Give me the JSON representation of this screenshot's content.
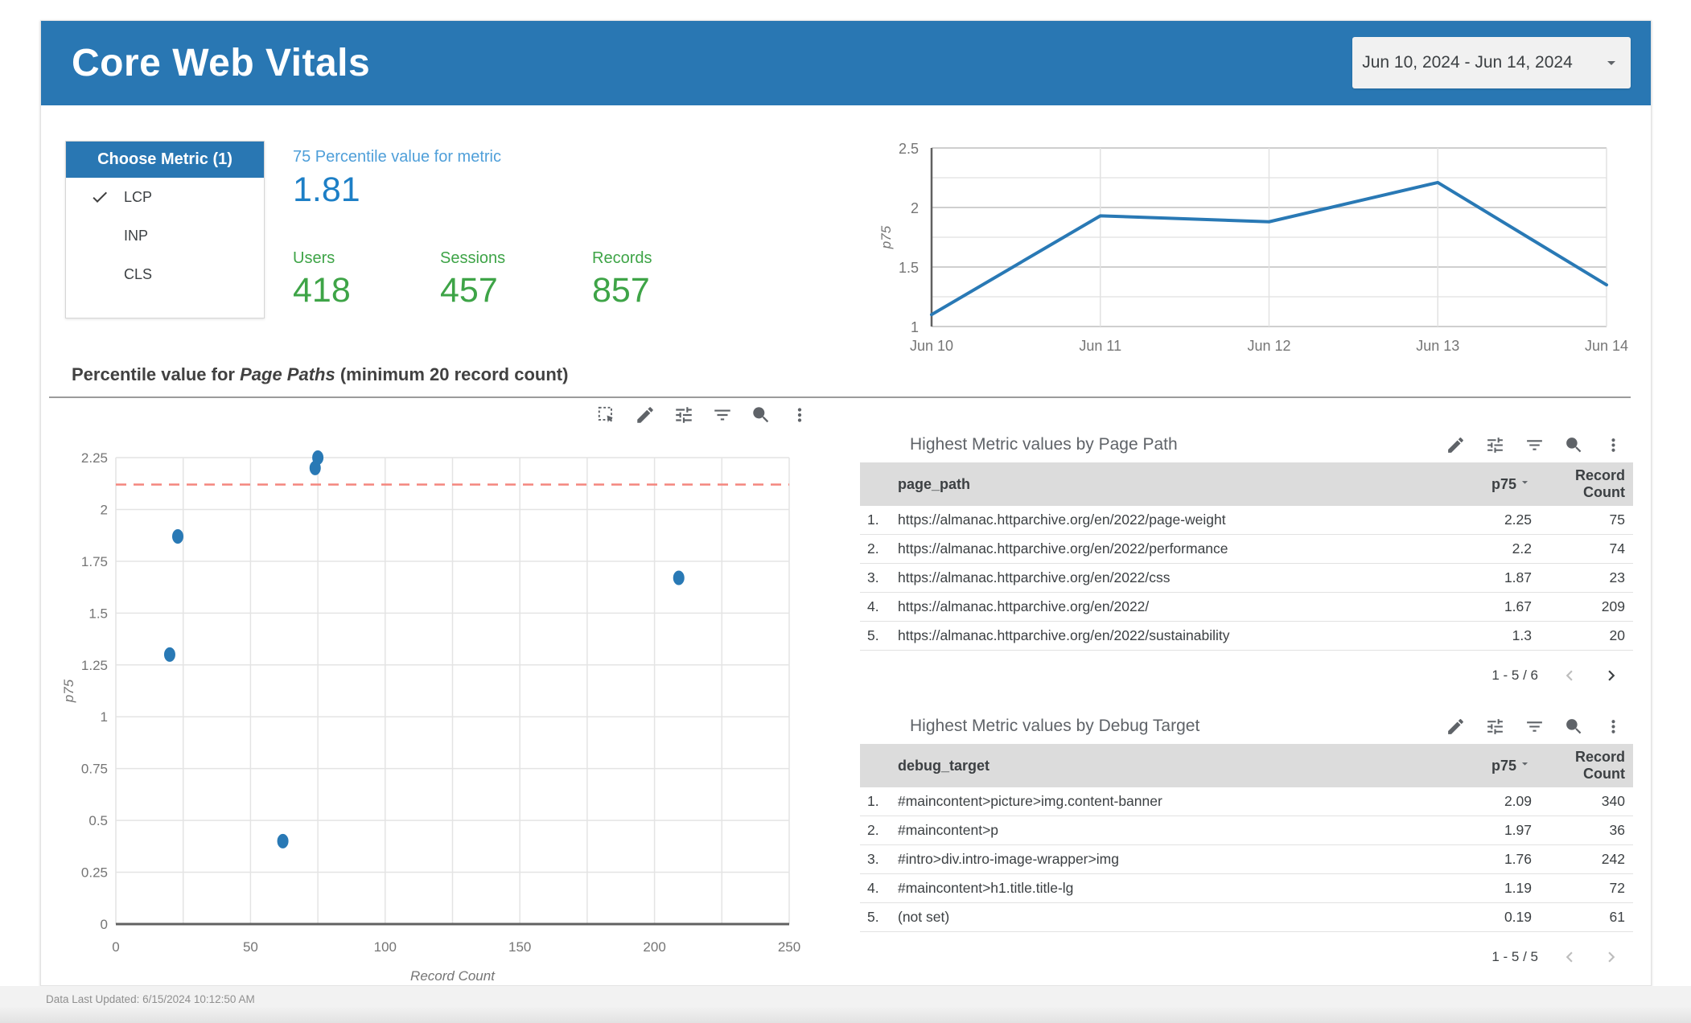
{
  "header": {
    "title": "Core Web Vitals",
    "date_range": "Jun 10, 2024 - Jun 14, 2024"
  },
  "metric_panel": {
    "title": "Choose Metric (1)",
    "items": [
      {
        "label": "LCP",
        "selected": true
      },
      {
        "label": "INP",
        "selected": false
      },
      {
        "label": "CLS",
        "selected": false
      }
    ]
  },
  "scorecards": {
    "primary": {
      "label": "75 Percentile value for metric",
      "value": "1.81"
    },
    "secondary": [
      {
        "label": "Users",
        "value": "418"
      },
      {
        "label": "Sessions",
        "value": "457"
      },
      {
        "label": "Records",
        "value": "857"
      }
    ]
  },
  "section": {
    "prefix": "Percentile value for ",
    "italic": "Page Paths",
    "suffix": " (minimum 20 record count)"
  },
  "chart_toolbar": [
    "marquee-select-icon",
    "edit-icon",
    "tune-icon",
    "filter-icon",
    "zoom-chart-icon",
    "more-vert-icon"
  ],
  "chart_data": [
    {
      "type": "line",
      "title": "p75 by date",
      "xlabel": "",
      "ylabel": "p75",
      "x": [
        "Jun 10",
        "Jun 11",
        "Jun 12",
        "Jun 13",
        "Jun 14"
      ],
      "series": [
        {
          "name": "p75",
          "values": [
            1.1,
            1.93,
            1.88,
            2.21,
            1.35
          ]
        }
      ],
      "ylim": [
        1,
        2.5
      ],
      "ytick_labels": [
        1,
        1.5,
        2,
        2.5
      ],
      "ygrid_step": 0.25,
      "grid": true,
      "legend": "none",
      "line_color": "#2979b5"
    },
    {
      "type": "scatter",
      "title": "Percentile value for Page Paths (minimum 20 record count)",
      "xlabel": "Record Count",
      "ylabel": "p75",
      "xlim": [
        0,
        250
      ],
      "ylim": [
        0,
        2.25
      ],
      "xgrid_step": 25,
      "xtick_label_step": 50,
      "ygrid_step": 0.25,
      "grid": true,
      "points": [
        {
          "x": 75,
          "y": 2.25
        },
        {
          "x": 74,
          "y": 2.2
        },
        {
          "x": 23,
          "y": 1.87
        },
        {
          "x": 20,
          "y": 1.3
        },
        {
          "x": 62,
          "y": 0.4
        },
        {
          "x": 209,
          "y": 1.67
        }
      ],
      "reference_line": {
        "y": 2.12,
        "style": "dashed",
        "color": "#f4867e"
      },
      "point_color": "#2979b5"
    }
  ],
  "tables": [
    {
      "title": "Highest Metric values by Page Path",
      "toolbar": [
        "edit-icon",
        "tune-icon",
        "filter-icon",
        "zoom-chart-icon",
        "more-vert-icon"
      ],
      "columns": [
        "page_path",
        "p75",
        "Record Count"
      ],
      "sort": {
        "column": "p75",
        "direction": "desc"
      },
      "rows": [
        [
          "https://almanac.httparchive.org/en/2022/page-weight",
          "2.25",
          "75"
        ],
        [
          "https://almanac.httparchive.org/en/2022/performance",
          "2.2",
          "74"
        ],
        [
          "https://almanac.httparchive.org/en/2022/css",
          "1.87",
          "23"
        ],
        [
          "https://almanac.httparchive.org/en/2022/",
          "1.67",
          "209"
        ],
        [
          "https://almanac.httparchive.org/en/2022/sustainability",
          "1.3",
          "20"
        ]
      ],
      "pagination": {
        "label": "1 - 5 / 6",
        "prev_enabled": false,
        "next_enabled": true
      }
    },
    {
      "title": "Highest Metric values by Debug Target",
      "toolbar": [
        "edit-icon",
        "tune-icon",
        "filter-icon",
        "zoom-chart-icon",
        "more-vert-icon"
      ],
      "columns": [
        "debug_target",
        "p75",
        "Record Count"
      ],
      "sort": {
        "column": "p75",
        "direction": "desc"
      },
      "rows": [
        [
          "#maincontent>picture>img.content-banner",
          "2.09",
          "340"
        ],
        [
          "#maincontent>p",
          "1.97",
          "36"
        ],
        [
          "#intro>div.intro-image-wrapper>img",
          "1.76",
          "242"
        ],
        [
          "#maincontent>h1.title.title-lg",
          "1.19",
          "72"
        ],
        [
          "(not set)",
          "0.19",
          "61"
        ]
      ],
      "pagination": {
        "label": "1 - 5 / 5",
        "prev_enabled": false,
        "next_enabled": false
      }
    }
  ],
  "footer": {
    "last_updated": "Data Last Updated: 6/15/2024 10:12:50 AM"
  },
  "colors": {
    "header_blue": "#2977b3",
    "scorecard_blue": "#1d7fc6",
    "scorecard_blue_label": "#4f9fd9",
    "scorecard_green": "#3ea447",
    "line_blue": "#2979b5",
    "reference_red": "#f4867e",
    "table_header_bg": "#dcdcdc"
  }
}
